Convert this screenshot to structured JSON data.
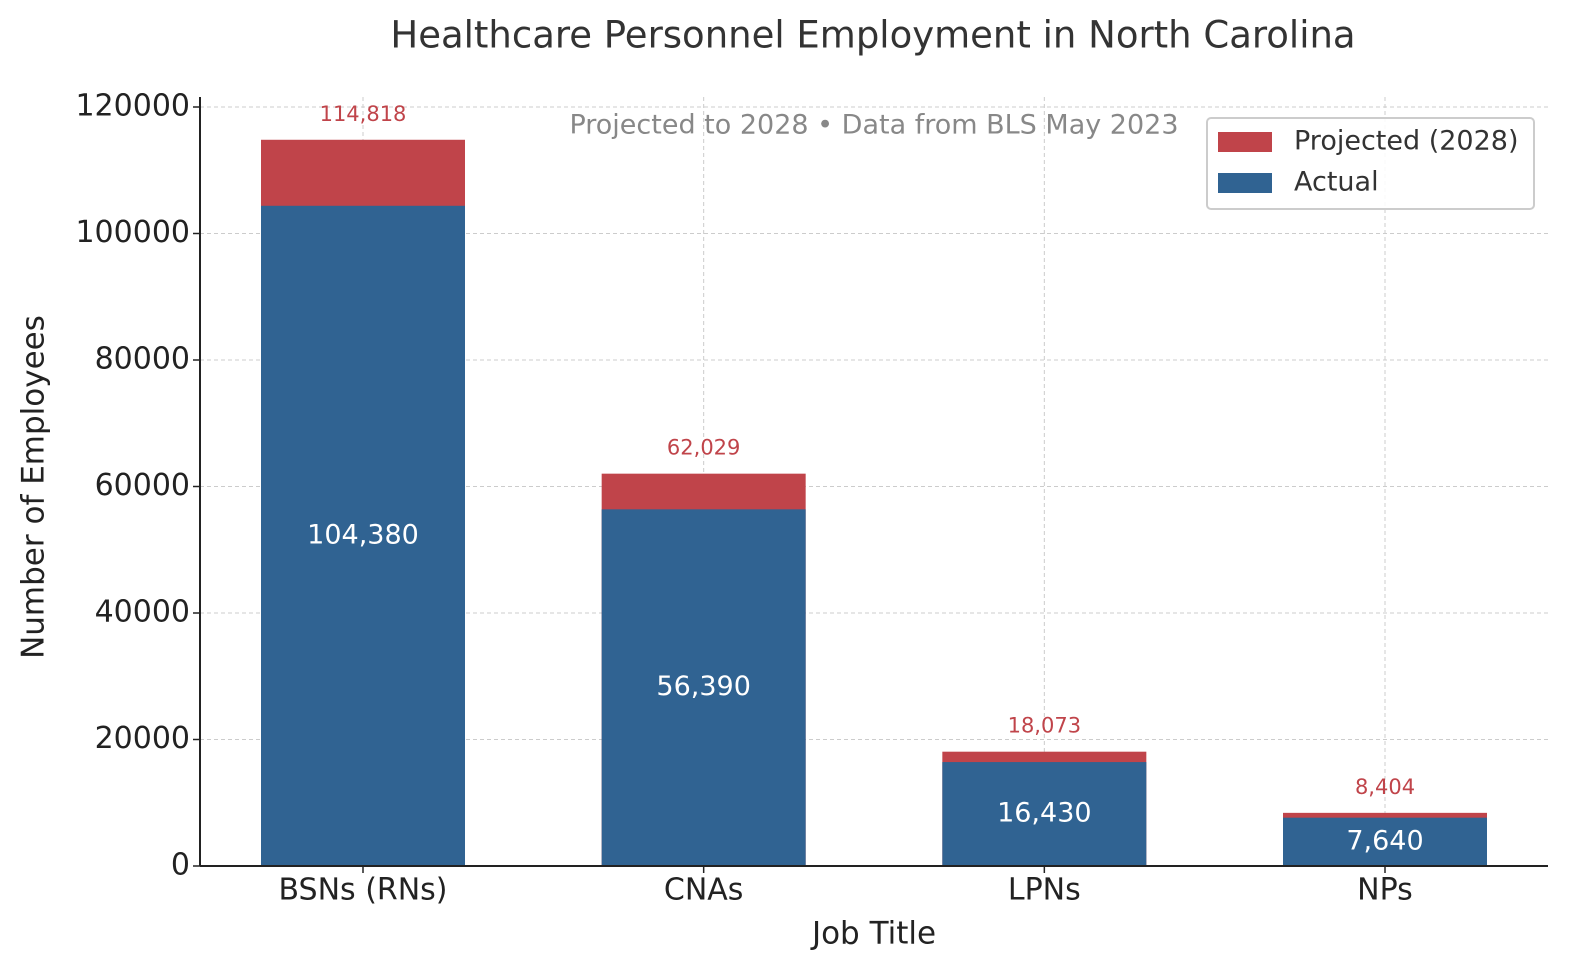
{
  "chart_data": {
    "type": "bar",
    "overlay": true,
    "title": "Healthcare Personnel Employment in North Carolina",
    "subtitle": "Projected to 2028 • Data from BLS May 2023",
    "x_label": "Job Title",
    "y_label": "Number of Employees",
    "categories": [
      "BSNs (RNs)",
      "CNAs",
      "LPNs",
      "NPs"
    ],
    "series": [
      {
        "name": "Projected (2028)",
        "color": "#c0444a",
        "values": [
          114818,
          62029,
          18073,
          8404
        ],
        "value_labels": [
          "114,818",
          "62,029",
          "18,073",
          "8,404"
        ]
      },
      {
        "name": "Actual",
        "color": "#306392",
        "values": [
          104380,
          56390,
          16430,
          7640
        ],
        "value_labels": [
          "104,380",
          "56,390",
          "16,430",
          "7,640"
        ]
      }
    ],
    "ylim": [
      0,
      120000
    ],
    "yticks": [
      0,
      20000,
      40000,
      60000,
      80000,
      100000,
      120000
    ],
    "grid": true,
    "legend": "upper right"
  }
}
